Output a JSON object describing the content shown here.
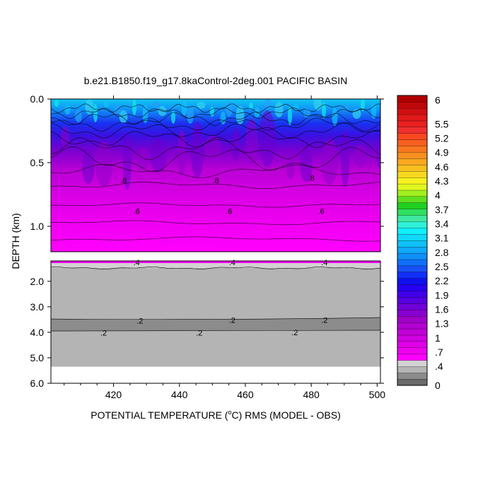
{
  "chart_data": {
    "type": "heatmap",
    "title": "b.e21.B1850.f19_g17.8kaControl-2deg.001 PACIFIC BASIN",
    "ylabel": "DEPTH (km)",
    "xlabel": {
      "before": "POTENTIAL TEMPERATURE (",
      "sup": "o",
      "after": "C) RMS (MODEL - OBS)"
    },
    "x_range": [
      401,
      501
    ],
    "x_ticks": [
      420,
      440,
      460,
      480,
      500
    ],
    "upper_panel": {
      "depth_range": [
        0.0,
        1.2
      ],
      "y_ticks": [
        {
          "v": 0.0,
          "label": "0.0"
        },
        {
          "v": 0.5,
          "label": "0.5"
        },
        {
          "v": 1.0,
          "label": "1.0"
        }
      ],
      "contour_labels": [
        {
          "text": ".8",
          "x": 423,
          "depth": 0.64
        },
        {
          "text": ".8",
          "x": 451,
          "depth": 0.64
        },
        {
          "text": ".8",
          "x": 480,
          "depth": 0.62
        },
        {
          "text": ".6",
          "x": 427,
          "depth": 0.88
        },
        {
          "text": ".6",
          "x": 455,
          "depth": 0.88
        },
        {
          "text": ".6",
          "x": 483,
          "depth": 0.88
        }
      ]
    },
    "lower_panel": {
      "depth_range": [
        1.2,
        6.0
      ],
      "y_ticks": [
        {
          "v": 2.0,
          "label": "2.0"
        },
        {
          "v": 3.0,
          "label": "3.0"
        },
        {
          "v": 4.0,
          "label": "4.0"
        },
        {
          "v": 5.0,
          "label": "5.0"
        },
        {
          "v": 6.0,
          "label": "6.0"
        }
      ],
      "data_bottom_depth": 5.35,
      "contour_labels": [
        {
          "text": ".4",
          "x": 427,
          "depth": 1.25
        },
        {
          "text": ".4",
          "x": 456,
          "depth": 1.25
        },
        {
          "text": ".4",
          "x": 484,
          "depth": 1.25
        },
        {
          "text": ".2",
          "x": 428,
          "depth": 3.55
        },
        {
          "text": ".2",
          "x": 456,
          "depth": 3.52
        },
        {
          "text": ".2",
          "x": 484,
          "depth": 3.52
        },
        {
          "text": ".2",
          "x": 417,
          "depth": 4.02
        },
        {
          "text": ".2",
          "x": 446,
          "depth": 4.02
        },
        {
          "text": ".2",
          "x": 475,
          "depth": 4.0
        }
      ]
    },
    "colorbar": {
      "min": 0,
      "max": 6.1,
      "labels": [
        "0",
        ".4",
        ".7",
        "1",
        "1.3",
        "1.6",
        "1.9",
        "2.2",
        "2.5",
        "2.8",
        "3.1",
        "3.4",
        "3.7",
        "4",
        "4.3",
        "4.6",
        "4.9",
        "5.2",
        "5.5",
        "6"
      ],
      "level_colors": [
        "#6b6b6b",
        "#8c8c8c",
        "#b4b4b4",
        "#d2d2d2",
        "#ff00ff",
        "#f000f0",
        "#e000e8",
        "#d000e0",
        "#c000d8",
        "#b000d0",
        "#a000c8",
        "#8800d0",
        "#7000d8",
        "#5800e0",
        "#4000e8",
        "#2800f0",
        "#1010f0",
        "#1030f8",
        "#1850f8",
        "#1070f8",
        "#1090f8",
        "#10a8f8",
        "#10c0f8",
        "#10d8f8",
        "#10f0f8",
        "#30f0d8",
        "#40e8a0",
        "#30e060",
        "#20d020",
        "#60e020",
        "#a0f020",
        "#e0f820",
        "#f8f020",
        "#f8d820",
        "#f8c020",
        "#f8a820",
        "#f89020",
        "#f87820",
        "#f86020",
        "#f84820",
        "#f03030",
        "#e82020",
        "#e01818",
        "#d01010",
        "#c00808",
        "#b00000"
      ]
    }
  }
}
